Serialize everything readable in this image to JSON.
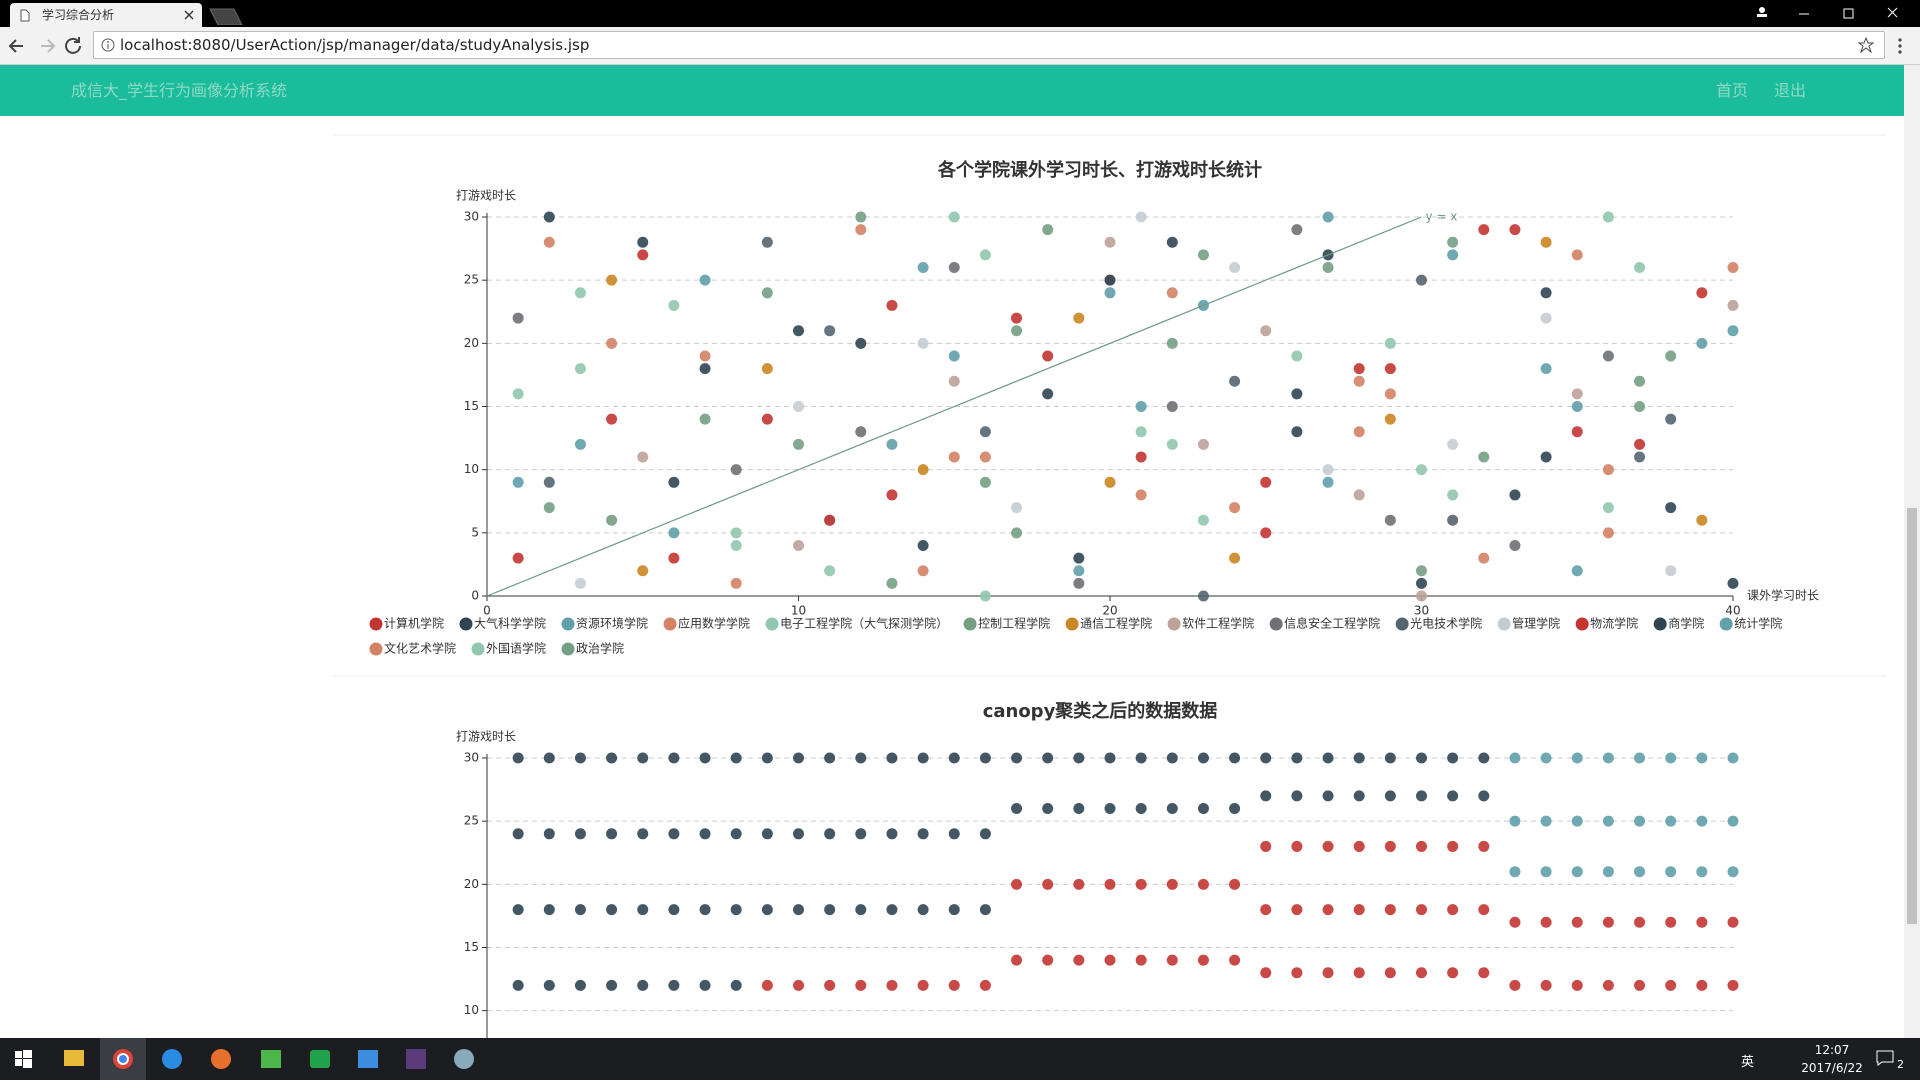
{
  "browser": {
    "tab_title": "学习综合分析",
    "url": "localhost:8080/UserAction/jsp/manager/data/studyAnalysis.jsp"
  },
  "navbar": {
    "brand": "成信大_学生行为画像分析系统",
    "links": [
      "首页",
      "退出"
    ]
  },
  "chart_data": [
    {
      "type": "scatter",
      "title": "各个学院课外学习时长、打游戏时长统计",
      "xlabel": "课外学习时长",
      "ylabel": "打游戏时长",
      "xlim": [
        0,
        40
      ],
      "ylim": [
        0,
        30
      ],
      "xticks": [
        0,
        10,
        20,
        30,
        40
      ],
      "yticks": [
        0,
        5,
        10,
        15,
        20,
        25,
        30
      ],
      "grid": true,
      "markline": {
        "label": "y = x"
      },
      "series": [
        {
          "name": "计算机学院",
          "color": "#c23531",
          "x": [
            1,
            5,
            9,
            13,
            17,
            21,
            25,
            29,
            33,
            37
          ],
          "values": [
            3,
            27,
            14,
            8,
            22,
            11,
            5,
            18,
            29,
            12
          ]
        },
        {
          "name": "大气科学学院",
          "color": "#2f4554",
          "x": [
            2,
            6,
            10,
            14,
            18,
            22,
            26,
            30,
            34,
            38
          ],
          "values": [
            30,
            9,
            21,
            4,
            16,
            28,
            13,
            1,
            24,
            7
          ]
        },
        {
          "name": "资源环境学院",
          "color": "#61a0a8",
          "x": [
            3,
            7,
            11,
            15,
            19,
            23,
            27,
            31,
            35,
            39
          ],
          "values": [
            12,
            25,
            6,
            19,
            2,
            23,
            9,
            27,
            15,
            20
          ]
        },
        {
          "name": "应用数学学院",
          "color": "#d48265",
          "x": [
            4,
            8,
            12,
            16,
            20,
            24,
            28,
            32,
            36,
            40
          ],
          "values": [
            20,
            1,
            29,
            11,
            25,
            7,
            17,
            3,
            10,
            26
          ]
        },
        {
          "name": "电子工程学院（大气探测学院）",
          "color": "#91c7ae",
          "x": [
            1,
            6,
            11,
            16,
            21,
            26,
            31,
            36,
            3,
            8
          ],
          "values": [
            16,
            23,
            2,
            27,
            13,
            19,
            8,
            30,
            24,
            5
          ]
        },
        {
          "name": "控制工程学院",
          "color": "#749f83",
          "x": [
            2,
            7,
            12,
            17,
            22,
            27,
            32,
            37,
            13,
            18
          ],
          "values": [
            7,
            14,
            30,
            5,
            20,
            26,
            11,
            17,
            1,
            29
          ]
        },
        {
          "name": "通信工程学院",
          "color": "#ca8622",
          "x": [
            4,
            9,
            14,
            19,
            24,
            29,
            34,
            39,
            20,
            5
          ],
          "values": [
            25,
            18,
            10,
            22,
            3,
            14,
            28,
            6,
            9,
            2
          ]
        },
        {
          "name": "软件工程学院",
          "color": "#bda29a",
          "x": [
            5,
            10,
            15,
            20,
            25,
            30,
            35,
            40,
            23,
            28
          ],
          "values": [
            11,
            4,
            17,
            28,
            21,
            0,
            16,
            23,
            12,
            8
          ]
        },
        {
          "name": "信息安全工程学院",
          "color": "#6e7074",
          "x": [
            1,
            8,
            15,
            22,
            29,
            36,
            12,
            19,
            26,
            33
          ],
          "values": [
            22,
            10,
            26,
            15,
            6,
            19,
            13,
            1,
            29,
            4
          ]
        },
        {
          "name": "光电技术学院",
          "color": "#546570",
          "x": [
            2,
            9,
            16,
            23,
            30,
            37,
            11,
            24,
            31,
            38
          ],
          "values": [
            9,
            28,
            13,
            0,
            25,
            11,
            21,
            17,
            6,
            14
          ]
        },
        {
          "name": "管理学院",
          "color": "#c4ccd3",
          "x": [
            3,
            10,
            17,
            24,
            31,
            38,
            14,
            27,
            34,
            21
          ],
          "values": [
            1,
            15,
            7,
            26,
            12,
            2,
            20,
            10,
            22,
            30
          ]
        },
        {
          "name": "物流学院",
          "color": "#c23531",
          "x": [
            4,
            11,
            18,
            25,
            32,
            39,
            6,
            13,
            35,
            28
          ],
          "values": [
            14,
            6,
            19,
            9,
            29,
            24,
            3,
            23,
            13,
            18
          ]
        },
        {
          "name": "商学院",
          "color": "#2f4554",
          "x": [
            5,
            12,
            19,
            26,
            33,
            40,
            7,
            20,
            27,
            34
          ],
          "values": [
            28,
            20,
            3,
            16,
            8,
            1,
            18,
            25,
            27,
            11
          ]
        },
        {
          "name": "统计学院",
          "color": "#61a0a8",
          "x": [
            6,
            13,
            20,
            27,
            34,
            1,
            14,
            21,
            35,
            40
          ],
          "values": [
            5,
            12,
            24,
            30,
            18,
            9,
            26,
            15,
            2,
            21
          ]
        },
        {
          "name": "文化艺术学院",
          "color": "#d48265",
          "x": [
            7,
            14,
            21,
            28,
            35,
            2,
            15,
            22,
            36,
            29
          ],
          "values": [
            19,
            2,
            8,
            13,
            27,
            28,
            11,
            24,
            5,
            16
          ]
        },
        {
          "name": "外国语学院",
          "color": "#91c7ae",
          "x": [
            8,
            15,
            22,
            29,
            36,
            3,
            16,
            23,
            37,
            30
          ],
          "values": [
            4,
            30,
            12,
            20,
            7,
            18,
            0,
            6,
            26,
            10
          ]
        },
        {
          "name": "政治学院",
          "color": "#749f83",
          "x": [
            9,
            16,
            23,
            30,
            37,
            4,
            10,
            17,
            38,
            31
          ],
          "values": [
            24,
            9,
            27,
            2,
            15,
            6,
            12,
            21,
            19,
            28
          ]
        }
      ]
    },
    {
      "type": "scatter",
      "title": "canopy聚类之后的数据数据",
      "ylabel": "打游戏时长",
      "xlim": [
        0,
        40
      ],
      "ylim": [
        0,
        30
      ],
      "yticks": [
        10,
        15,
        20,
        25,
        30
      ],
      "grid": true,
      "series": [
        {
          "color": "#2f4554",
          "x": [
            1,
            1,
            1,
            1,
            2,
            2,
            2,
            2,
            3,
            3,
            3,
            3,
            4,
            4,
            4,
            4,
            5,
            5,
            5,
            5,
            6,
            6,
            6,
            6,
            7,
            7,
            7,
            7,
            8,
            8,
            8,
            8,
            9,
            9,
            9,
            10,
            10,
            10,
            11,
            11,
            11,
            12,
            12,
            12,
            13,
            13,
            13,
            14,
            14,
            14,
            15,
            15,
            15,
            16,
            16,
            16,
            17,
            17,
            18,
            18,
            19,
            19,
            20,
            20,
            21,
            21,
            22,
            22,
            23,
            23,
            24,
            24,
            25,
            25,
            26,
            26,
            27,
            27,
            28,
            28,
            29,
            29,
            30,
            30,
            31,
            31,
            32,
            32
          ],
          "values": [
            30,
            24,
            18,
            12,
            30,
            24,
            18,
            12,
            30,
            24,
            18,
            12,
            30,
            24,
            18,
            12,
            30,
            24,
            18,
            12,
            30,
            24,
            18,
            12,
            30,
            24,
            18,
            12,
            30,
            24,
            18,
            12,
            30,
            24,
            18,
            30,
            24,
            18,
            30,
            24,
            18,
            30,
            24,
            18,
            30,
            24,
            18,
            30,
            24,
            18,
            30,
            24,
            18,
            30,
            24,
            18,
            30,
            26,
            30,
            26,
            30,
            26,
            30,
            26,
            30,
            26,
            30,
            26,
            30,
            26,
            30,
            26,
            30,
            27,
            30,
            27,
            30,
            27,
            30,
            27,
            30,
            27,
            30,
            27,
            30,
            27,
            30,
            27
          ]
        },
        {
          "color": "#c23531",
          "x": [
            9,
            10,
            11,
            12,
            13,
            14,
            15,
            16,
            17,
            17,
            18,
            18,
            19,
            19,
            20,
            20,
            21,
            21,
            22,
            22,
            23,
            23,
            24,
            24,
            25,
            25,
            25,
            26,
            26,
            26,
            27,
            27,
            27,
            28,
            28,
            28,
            29,
            29,
            29,
            30,
            30,
            30,
            31,
            31,
            31,
            32,
            32,
            32,
            33,
            33,
            34,
            34,
            35,
            35,
            36,
            36,
            37,
            37,
            38,
            38,
            39,
            39,
            40,
            40
          ],
          "values": [
            12,
            12,
            12,
            12,
            12,
            12,
            12,
            12,
            20,
            14,
            20,
            14,
            20,
            14,
            20,
            14,
            20,
            14,
            20,
            14,
            20,
            14,
            20,
            14,
            23,
            18,
            13,
            23,
            18,
            13,
            23,
            18,
            13,
            23,
            18,
            13,
            23,
            18,
            13,
            23,
            18,
            13,
            23,
            18,
            13,
            23,
            18,
            13,
            17,
            12,
            17,
            12,
            17,
            12,
            17,
            12,
            17,
            12,
            17,
            12,
            17,
            12,
            17,
            12
          ]
        },
        {
          "color": "#61a0a8",
          "x": [
            33,
            33,
            33,
            34,
            34,
            34,
            35,
            35,
            35,
            36,
            36,
            36,
            37,
            37,
            37,
            38,
            38,
            38,
            39,
            39,
            39,
            40,
            40,
            40
          ],
          "values": [
            30,
            25,
            21,
            30,
            25,
            21,
            30,
            25,
            21,
            30,
            25,
            21,
            30,
            25,
            21,
            30,
            25,
            21,
            30,
            25,
            21,
            30,
            25,
            21
          ]
        }
      ]
    }
  ],
  "taskbar": {
    "ime": "英",
    "time": "12:07",
    "date": "2017/6/22",
    "notifications": 2
  }
}
